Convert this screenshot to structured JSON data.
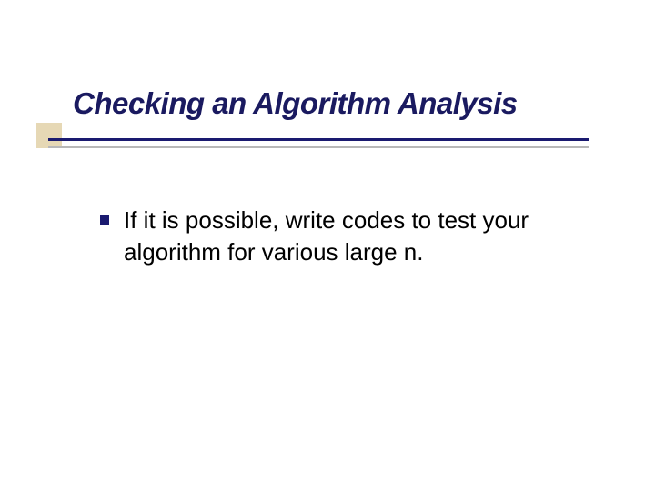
{
  "slide": {
    "title": "Checking an Algorithm Analysis",
    "title_color": "#1a1a60",
    "title_fontsize": 33,
    "title_italic": true,
    "title_bold": true,
    "bullets": [
      {
        "text": "If it is possible, write codes to test your algorithm for various large n."
      }
    ],
    "bullet_marker_color": "#1a1a70",
    "bullet_text_color": "#000000",
    "bullet_fontsize": 26,
    "underline_primary_color": "#1a1a70",
    "underline_secondary_color": "#b8b8b8",
    "corner_accent_color": "rgba(220, 200, 150, 0.7)",
    "background_color": "#ffffff"
  }
}
